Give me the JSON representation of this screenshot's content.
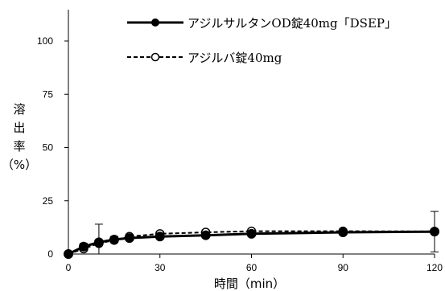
{
  "chart_data": {
    "type": "line",
    "title": "",
    "xlabel": "時間（min）",
    "ylabel_chars": [
      "溶",
      "出",
      "率",
      "（%）"
    ],
    "xlim": [
      0,
      120
    ],
    "ylim": [
      0,
      100
    ],
    "x_ticks": [
      0,
      30,
      60,
      90,
      120
    ],
    "y_ticks": [
      0,
      25,
      50,
      75,
      100
    ],
    "grid": false,
    "legend_position": "top-right",
    "series": [
      {
        "name": "アジルサルタンOD錠40mg「DSEP」",
        "style": "solid",
        "marker": "filled-circle",
        "color": "#000000",
        "x": [
          0,
          5,
          10,
          15,
          20,
          30,
          45,
          60,
          90,
          120
        ],
        "y": [
          0,
          3.5,
          5.5,
          6.8,
          7.5,
          8.2,
          8.8,
          9.5,
          10.2,
          10.5
        ],
        "err": [
          0,
          1.5,
          8.5,
          1.5,
          1.2,
          1.0,
          1.0,
          1.0,
          1.0,
          9.5
        ]
      },
      {
        "name": "アジルバ錠40mg",
        "style": "dashed",
        "marker": "open-circle",
        "color": "#000000",
        "x": [
          0,
          5,
          10,
          15,
          20,
          30,
          45,
          60,
          90,
          120
        ],
        "y": [
          0,
          2.5,
          5.0,
          6.5,
          8.2,
          9.5,
          10.2,
          10.7,
          10.7,
          10.6
        ],
        "err": [
          0,
          1.0,
          1.0,
          1.0,
          1.0,
          1.0,
          1.0,
          1.0,
          1.0,
          1.0
        ]
      }
    ]
  }
}
